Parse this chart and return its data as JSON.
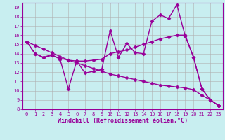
{
  "title": "Windchill (Refroidissement éolien,°C)",
  "background_color": "#c8eef0",
  "line_color": "#990099",
  "grid_color": "#b0b0b0",
  "xlim": [
    -0.5,
    23.5
  ],
  "ylim": [
    8,
    19.5
  ],
  "yticks": [
    8,
    9,
    10,
    11,
    12,
    13,
    14,
    15,
    16,
    17,
    18,
    19
  ],
  "xticks": [
    0,
    1,
    2,
    3,
    4,
    5,
    6,
    7,
    8,
    9,
    10,
    11,
    12,
    13,
    14,
    15,
    16,
    17,
    18,
    19,
    20,
    21,
    22,
    23
  ],
  "series": [
    {
      "x": [
        0,
        1,
        2,
        3,
        4,
        5,
        6,
        7,
        8,
        9,
        10,
        11,
        12,
        13,
        14,
        15,
        16,
        17,
        18,
        19,
        20,
        21,
        22,
        23
      ],
      "y": [
        15.3,
        14.0,
        13.6,
        13.9,
        13.4,
        10.2,
        13.2,
        11.9,
        12.1,
        12.3,
        16.5,
        13.6,
        15.1,
        14.1,
        14.0,
        17.5,
        18.2,
        17.8,
        19.3,
        15.9,
        13.6,
        10.2,
        9.0,
        8.4
      ]
    },
    {
      "x": [
        0,
        1,
        2,
        3,
        4,
        5,
        6,
        7,
        8,
        9,
        10,
        11,
        12,
        13,
        14,
        15,
        16,
        17,
        18,
        19,
        20,
        21,
        22,
        23
      ],
      "y": [
        15.3,
        14.0,
        13.6,
        13.8,
        13.5,
        13.3,
        13.2,
        13.2,
        13.3,
        13.4,
        14.0,
        14.2,
        14.4,
        14.7,
        15.0,
        15.3,
        15.6,
        15.8,
        16.0,
        16.0,
        13.6,
        10.2,
        9.0,
        8.4
      ]
    },
    {
      "x": [
        0,
        1,
        2,
        3,
        4,
        5,
        6,
        7,
        8,
        9,
        10,
        11,
        12,
        13,
        14,
        15,
        16,
        17,
        18,
        19,
        20,
        21,
        22,
        23
      ],
      "y": [
        15.3,
        14.9,
        14.5,
        14.1,
        13.7,
        13.3,
        13.0,
        12.7,
        12.4,
        12.1,
        11.8,
        11.6,
        11.4,
        11.2,
        11.0,
        10.8,
        10.6,
        10.5,
        10.4,
        10.3,
        10.1,
        9.5,
        9.0,
        8.4
      ]
    }
  ],
  "marker": "D",
  "markersize": 2.5,
  "linewidth": 1.0,
  "xlabel_fontsize": 6,
  "tick_fontsize": 5,
  "xlabel_fontweight": "bold"
}
